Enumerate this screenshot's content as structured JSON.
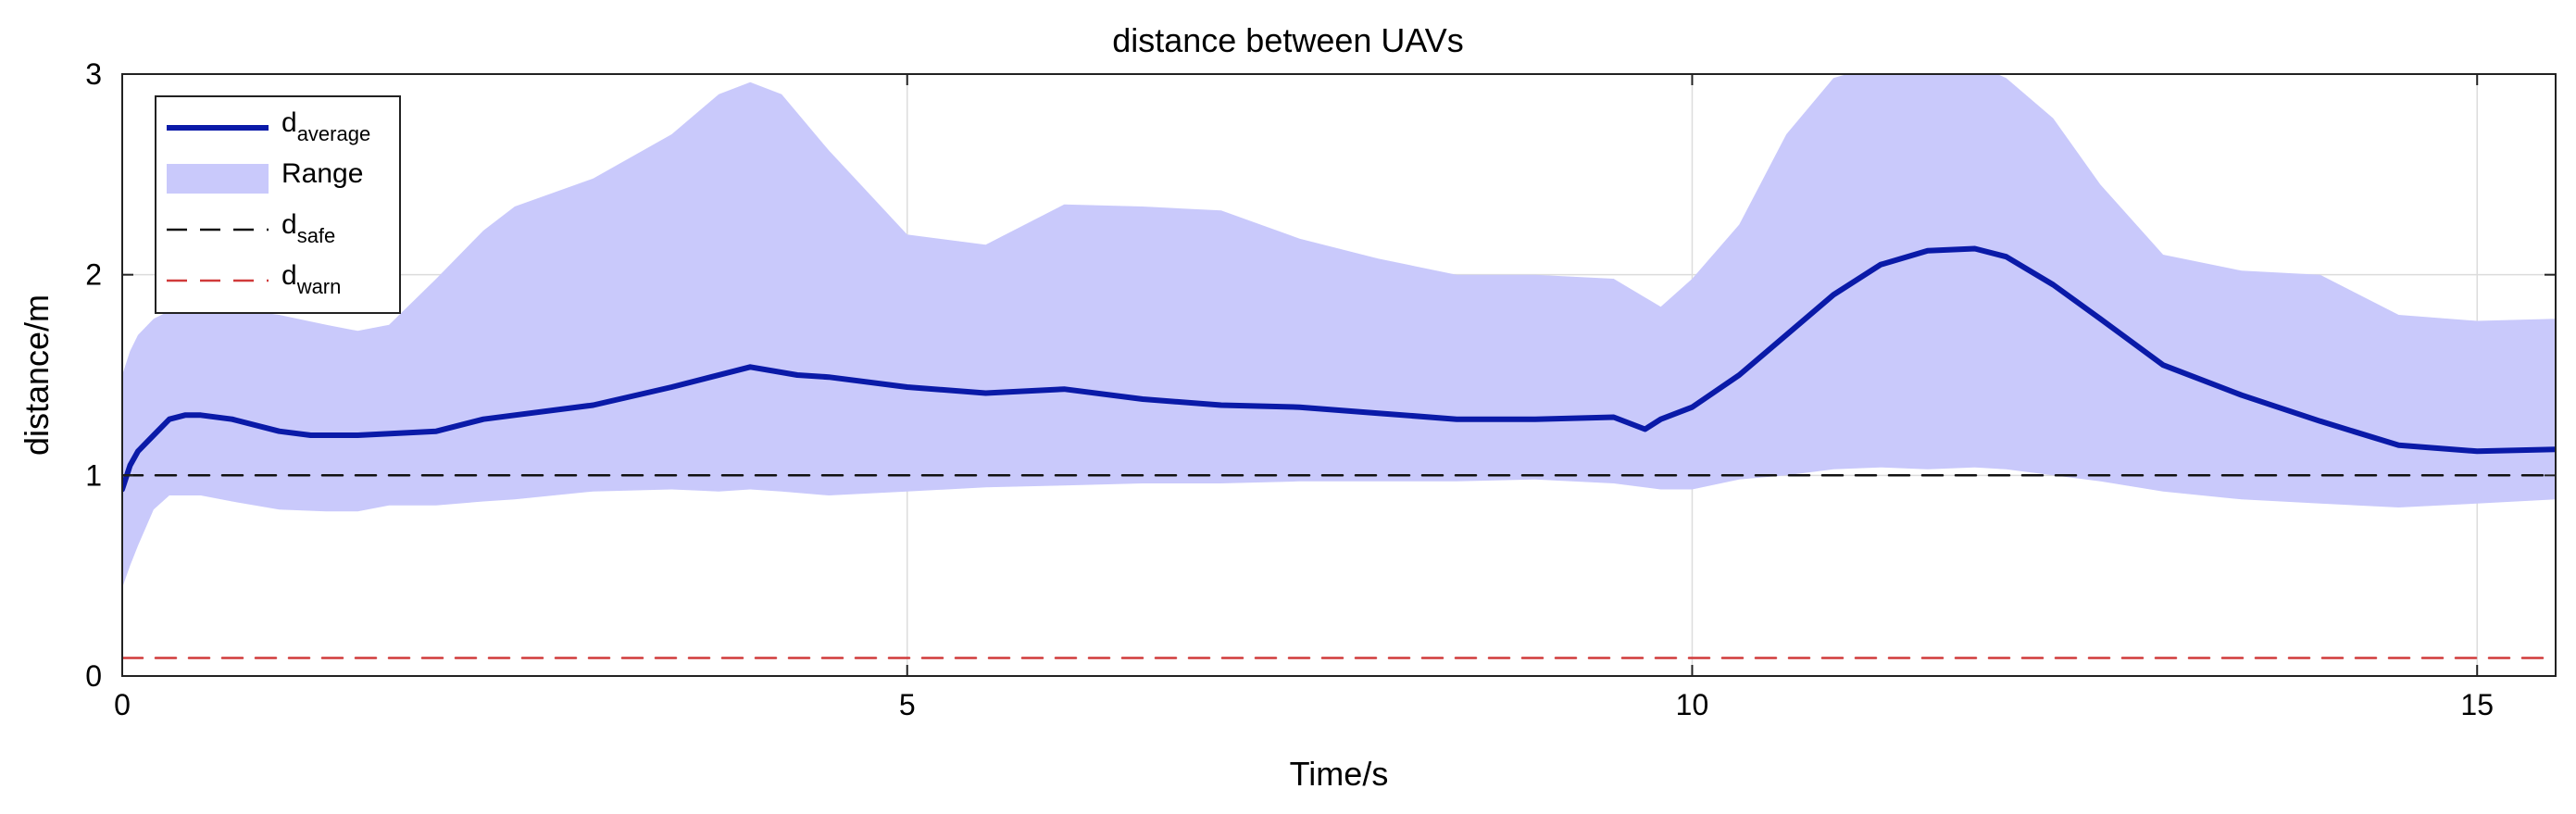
{
  "chart_data": {
    "type": "line",
    "title": "distance between UAVs",
    "xlabel": "Time/s",
    "ylabel": "distance/m",
    "xlim": [
      0,
      15.5
    ],
    "ylim": [
      0,
      3
    ],
    "xticks": [
      0,
      5,
      10,
      15
    ],
    "yticks": [
      0,
      1,
      2,
      3
    ],
    "grid": true,
    "legend_position": "top-left",
    "legend": [
      {
        "name": "d",
        "sub": "average",
        "style": "solid",
        "color": "#0a1aa8"
      },
      {
        "name": "Range",
        "sub": "",
        "style": "fill",
        "color": "#c9c9fb"
      },
      {
        "name": "d",
        "sub": "safe",
        "style": "dashed",
        "color": "#111111"
      },
      {
        "name": "d",
        "sub": "warn",
        "style": "dashed",
        "color": "#d03a3a"
      }
    ],
    "series": [
      {
        "name": "d_average",
        "x": [
          0,
          0.05,
          0.1,
          0.2,
          0.3,
          0.4,
          0.5,
          0.7,
          1.0,
          1.2,
          1.5,
          2.0,
          2.3,
          2.5,
          3.0,
          3.5,
          4.0,
          4.3,
          4.5,
          5.0,
          5.5,
          6.0,
          6.5,
          7.0,
          7.5,
          8.0,
          8.5,
          9.0,
          9.5,
          9.7,
          9.8,
          10.0,
          10.3,
          10.6,
          10.9,
          11.2,
          11.5,
          11.8,
          12.0,
          12.3,
          12.6,
          13.0,
          13.5,
          14.0,
          14.5,
          15.0,
          15.5
        ],
        "y": [
          0.93,
          1.05,
          1.12,
          1.2,
          1.28,
          1.3,
          1.3,
          1.28,
          1.22,
          1.2,
          1.2,
          1.22,
          1.28,
          1.3,
          1.35,
          1.44,
          1.54,
          1.5,
          1.49,
          1.44,
          1.41,
          1.43,
          1.38,
          1.35,
          1.34,
          1.31,
          1.28,
          1.28,
          1.29,
          1.23,
          1.28,
          1.34,
          1.5,
          1.7,
          1.9,
          2.05,
          2.12,
          2.13,
          2.09,
          1.95,
          1.78,
          1.55,
          1.4,
          1.27,
          1.15,
          1.12,
          1.13
        ]
      },
      {
        "name": "Range",
        "x": [
          0,
          0.05,
          0.1,
          0.2,
          0.3,
          0.5,
          0.7,
          1.0,
          1.3,
          1.5,
          1.7,
          2.0,
          2.3,
          2.5,
          3.0,
          3.5,
          3.8,
          4.0,
          4.2,
          4.5,
          5.0,
          5.5,
          6.0,
          6.5,
          7.0,
          7.5,
          8.0,
          8.5,
          9.0,
          9.5,
          9.8,
          10.0,
          10.3,
          10.6,
          10.9,
          11.2,
          11.5,
          11.8,
          12.0,
          12.3,
          12.6,
          13.0,
          13.5,
          14.0,
          14.5,
          15.0,
          15.5
        ],
        "upper": [
          1.5,
          1.62,
          1.7,
          1.78,
          1.82,
          1.85,
          1.83,
          1.8,
          1.75,
          1.72,
          1.75,
          1.98,
          2.22,
          2.34,
          2.48,
          2.7,
          2.9,
          2.96,
          2.9,
          2.62,
          2.2,
          2.15,
          2.35,
          2.34,
          2.32,
          2.18,
          2.08,
          2.0,
          2.0,
          1.98,
          1.84,
          1.98,
          2.25,
          2.7,
          2.98,
          3.05,
          3.05,
          3.05,
          2.98,
          2.78,
          2.45,
          2.1,
          2.02,
          2.0,
          1.8,
          1.77,
          1.78
        ],
        "lower": [
          0.44,
          0.55,
          0.65,
          0.83,
          0.9,
          0.9,
          0.87,
          0.83,
          0.82,
          0.82,
          0.85,
          0.85,
          0.87,
          0.88,
          0.92,
          0.93,
          0.92,
          0.93,
          0.92,
          0.9,
          0.92,
          0.94,
          0.95,
          0.96,
          0.96,
          0.97,
          0.97,
          0.97,
          0.98,
          0.96,
          0.93,
          0.93,
          0.98,
          1.0,
          1.03,
          1.04,
          1.03,
          1.04,
          1.03,
          1.0,
          0.97,
          0.92,
          0.88,
          0.86,
          0.84,
          0.86,
          0.88
        ]
      },
      {
        "name": "d_safe",
        "x": [
          0,
          15.5
        ],
        "y": [
          1.0,
          1.0
        ]
      },
      {
        "name": "d_warn",
        "x": [
          0,
          15.5
        ],
        "y": [
          0.09,
          0.09
        ]
      }
    ]
  }
}
